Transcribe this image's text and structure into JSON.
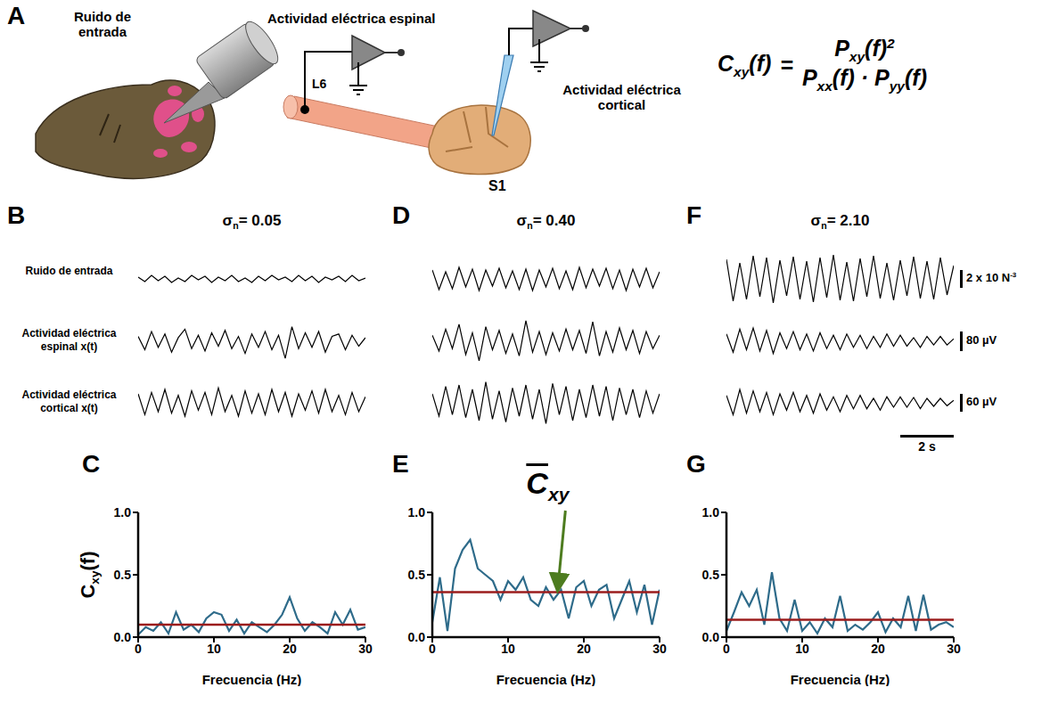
{
  "diagram": {
    "letter": "A",
    "stimulus_label": "Ruido de entrada",
    "spinal_label": "Actividad eléctrica espinal",
    "cortical_label": "Actividad eléctrica cortical",
    "spinal_site": "L6",
    "cortical_site": "S1",
    "formula": {
      "lhs": {
        "main": "C",
        "sub": "xy",
        "rest": "(f)"
      },
      "equals": "=",
      "numerator": {
        "main": "P",
        "sub": "xy",
        "rest": "(f)",
        "sup": "2"
      },
      "denominator": [
        {
          "main": "P",
          "sub": "xx",
          "rest": "(f)"
        },
        {
          "main": "P",
          "sub": "yy",
          "rest": "(f)"
        }
      ],
      "times": "·"
    }
  },
  "chart_data": [
    {
      "panel": "B",
      "type": "line",
      "title": {
        "main": "σ",
        "sub": "n",
        "rest": "= 0.05"
      },
      "tick_labels": false,
      "row_labels": [
        "Ruido de entrada",
        "Actividad eléctrica espinal x(t)",
        "Actividad eléctrica cortical x(t)"
      ],
      "x": [
        0,
        0.25,
        0.5,
        0.75,
        1,
        1.25,
        1.5,
        1.75,
        2,
        2.25,
        2.5,
        2.75,
        3,
        3.25,
        3.5,
        3.75,
        4,
        4.25,
        4.5,
        4.75,
        5,
        5.25,
        5.5,
        5.75,
        6,
        6.25,
        6.5,
        6.75,
        7,
        7.25,
        7.5,
        7.75,
        8,
        8.25,
        8.5
      ],
      "xlim": [
        0,
        8.5
      ],
      "series": [
        {
          "color": "#000000",
          "ylim": [
            -0.003,
            0.003
          ],
          "values": [
            0.0002,
            -0.0003,
            0.0004,
            -0.0002,
            0.0003,
            -0.0004,
            0.0001,
            -0.0003,
            0.0004,
            -0.0001,
            0.0003,
            -0.0004,
            0.0002,
            -0.0002,
            0.0004,
            -0.0003,
            0.0001,
            -0.0004,
            0.0003,
            -0.0002,
            0.0004,
            -0.0001,
            0.0002,
            -0.0003,
            0.0004,
            -0.0002,
            0.0003,
            -0.0004,
            0.0002,
            -0.0001,
            0.0003,
            -0.0003,
            0.0004,
            -0.0002,
            0.0001
          ]
        },
        {
          "color": "#000000",
          "ylim": [
            -110,
            110
          ],
          "values": [
            20,
            -35,
            40,
            -25,
            30,
            -45,
            15,
            50,
            -30,
            25,
            -40,
            35,
            -20,
            45,
            -30,
            20,
            -50,
            30,
            -25,
            40,
            -35,
            25,
            -70,
            60,
            -30,
            35,
            -25,
            40,
            -45,
            20,
            30,
            -35,
            25,
            -20,
            15
          ]
        },
        {
          "color": "#000000",
          "ylim": [
            -90,
            90
          ],
          "values": [
            30,
            -40,
            35,
            -30,
            45,
            -35,
            25,
            -45,
            40,
            -25,
            35,
            -40,
            50,
            -30,
            25,
            -45,
            40,
            -35,
            30,
            -40,
            45,
            -30,
            35,
            -45,
            30,
            -25,
            40,
            -35,
            45,
            -30,
            25,
            -40,
            35,
            -30,
            20
          ]
        }
      ]
    },
    {
      "panel": "D",
      "type": "line",
      "title": {
        "main": "σ",
        "sub": "n",
        "rest": "= 0.40"
      },
      "tick_labels": false,
      "x": [
        0,
        0.25,
        0.5,
        0.75,
        1,
        1.25,
        1.5,
        1.75,
        2,
        2.25,
        2.5,
        2.75,
        3,
        3.25,
        3.5,
        3.75,
        4,
        4.25,
        4.5,
        4.75,
        5,
        5.25,
        5.5,
        5.75,
        6,
        6.25,
        6.5,
        6.75,
        7,
        7.25,
        7.5,
        7.75,
        8,
        8.25,
        8.5
      ],
      "xlim": [
        0,
        8.5
      ],
      "series": [
        {
          "color": "#000000",
          "ylim": [
            -0.003,
            0.003
          ],
          "values": [
            0.001,
            -0.0012,
            0.0008,
            -0.0011,
            0.0013,
            -0.0009,
            0.0011,
            -0.0013,
            0.001,
            -0.0008,
            0.0012,
            -0.001,
            0.0009,
            -0.0012,
            0.0011,
            -0.0013,
            0.001,
            -0.0009,
            0.0012,
            -0.0011,
            0.0009,
            -0.0012,
            0.0013,
            -0.001,
            0.0011,
            -0.0008,
            0.0012,
            -0.0011,
            0.001,
            -0.0013,
            0.0011,
            -0.0009,
            0.0012,
            -0.001,
            0.0008
          ]
        },
        {
          "color": "#000000",
          "ylim": [
            -110,
            110
          ],
          "values": [
            25,
            -40,
            50,
            -30,
            70,
            -55,
            35,
            -80,
            60,
            -35,
            45,
            -50,
            30,
            -60,
            85,
            -45,
            40,
            -55,
            35,
            -40,
            50,
            -35,
            45,
            -50,
            80,
            -60,
            40,
            -45,
            55,
            -35,
            45,
            -50,
            40,
            -30,
            25
          ]
        },
        {
          "color": "#000000",
          "ylim": [
            -90,
            90
          ],
          "values": [
            30,
            -45,
            55,
            -40,
            60,
            -50,
            45,
            -60,
            70,
            -55,
            40,
            -65,
            50,
            -45,
            60,
            -55,
            45,
            -70,
            65,
            -40,
            55,
            -60,
            45,
            -50,
            60,
            -45,
            55,
            -60,
            50,
            -40,
            45,
            -50,
            40,
            -35,
            30
          ]
        }
      ]
    },
    {
      "panel": "F",
      "type": "line",
      "title": {
        "main": "σ",
        "sub": "n",
        "rest": "= 2.10"
      },
      "tick_labels": false,
      "x": [
        0,
        0.25,
        0.5,
        0.75,
        1,
        1.25,
        1.5,
        1.75,
        2,
        2.25,
        2.5,
        2.75,
        3,
        3.25,
        3.5,
        3.75,
        4,
        4.25,
        4.5,
        4.75,
        5,
        5.25,
        5.5,
        5.75,
        6,
        6.25,
        6.5,
        6.75,
        7,
        7.25,
        7.5,
        7.75,
        8,
        8.25,
        8.5
      ],
      "xlim": [
        0,
        8.5
      ],
      "series": [
        {
          "color": "#000000",
          "ylim": [
            -0.003,
            0.003
          ],
          "values": [
            0.0022,
            -0.0025,
            0.0018,
            -0.0023,
            0.0026,
            -0.002,
            0.0024,
            -0.0027,
            0.0021,
            -0.0019,
            0.0025,
            -0.0023,
            0.002,
            -0.0026,
            0.0024,
            -0.0021,
            0.0027,
            -0.0024,
            0.0019,
            -0.0025,
            0.0023,
            -0.002,
            0.0026,
            -0.0022,
            0.0018,
            -0.0024,
            0.0021,
            -0.0019,
            0.0025,
            -0.0022,
            0.002,
            -0.0023,
            0.0024,
            -0.0018,
            0.0015
          ]
        },
        {
          "color": "#000000",
          "ylim": [
            -110,
            110
          ],
          "values": [
            30,
            -45,
            50,
            -35,
            55,
            -40,
            45,
            -50,
            35,
            -30,
            40,
            -35,
            30,
            -40,
            35,
            -30,
            25,
            -35,
            30,
            -25,
            25,
            -30,
            20,
            -25,
            30,
            -20,
            25,
            -20,
            15,
            -25,
            20,
            -15,
            20,
            -15,
            10
          ]
        },
        {
          "color": "#000000",
          "ylim": [
            -90,
            90
          ],
          "values": [
            25,
            -40,
            45,
            -35,
            40,
            -30,
            35,
            -40,
            30,
            -25,
            35,
            -30,
            25,
            -35,
            30,
            -25,
            20,
            -30,
            25,
            -20,
            25,
            -20,
            15,
            -25,
            20,
            -15,
            20,
            -15,
            18,
            -20,
            15,
            -12,
            15,
            -10,
            8
          ]
        }
      ],
      "scale_bars": [
        {
          "value": 0.002,
          "label": {
            "main": "2 x 10",
            "sup": "-3",
            "rest": " N"
          }
        },
        {
          "value": 80,
          "label": "80 µV"
        },
        {
          "value": 60,
          "label": "60 µV"
        }
      ],
      "time_bar": {
        "value": 2,
        "label": "2 s"
      }
    },
    {
      "panel": "C",
      "type": "line",
      "x": [
        0,
        1,
        2,
        3,
        4,
        5,
        6,
        7,
        8,
        9,
        10,
        11,
        12,
        13,
        14,
        15,
        16,
        17,
        18,
        19,
        20,
        21,
        22,
        23,
        24,
        25,
        26,
        27,
        28,
        29,
        30
      ],
      "values": [
        0.02,
        0.08,
        0.05,
        0.12,
        0.03,
        0.2,
        0.06,
        0.1,
        0.04,
        0.15,
        0.2,
        0.18,
        0.05,
        0.14,
        0.03,
        0.12,
        0.08,
        0.04,
        0.1,
        0.18,
        0.32,
        0.15,
        0.05,
        0.12,
        0.08,
        0.03,
        0.2,
        0.1,
        0.22,
        0.06,
        0.08
      ],
      "color": "#2e6b8a",
      "mean": {
        "value": 0.1,
        "color": "#9b1c1c"
      },
      "xlim": [
        0,
        30
      ],
      "xticks": [
        0,
        10,
        20,
        30
      ],
      "ylim": [
        0,
        1
      ],
      "yticks": [
        {
          "value": 0,
          "label": "0.0"
        },
        {
          "value": 0.5,
          "label": "0.5"
        },
        {
          "value": 1,
          "label": "1.0"
        }
      ],
      "x_label": "Frecuencia (Hz)",
      "y_label": {
        "main": "C",
        "sub": "xy",
        "rest": "(f)"
      }
    },
    {
      "panel": "E",
      "type": "line",
      "x": [
        0,
        1,
        2,
        3,
        4,
        5,
        6,
        7,
        8,
        9,
        10,
        11,
        12,
        13,
        14,
        15,
        16,
        17,
        18,
        19,
        20,
        21,
        22,
        23,
        24,
        25,
        26,
        27,
        28,
        29,
        30
      ],
      "values": [
        0.12,
        0.48,
        0.05,
        0.55,
        0.7,
        0.78,
        0.55,
        0.5,
        0.45,
        0.3,
        0.45,
        0.38,
        0.48,
        0.3,
        0.25,
        0.4,
        0.3,
        0.38,
        0.15,
        0.4,
        0.45,
        0.25,
        0.38,
        0.42,
        0.15,
        0.3,
        0.45,
        0.2,
        0.42,
        0.1,
        0.38
      ],
      "color": "#2e6b8a",
      "mean": {
        "value": 0.36,
        "color": "#9b1c1c"
      },
      "annotation": {
        "main": "C",
        "sub": "xy"
      },
      "xlim": [
        0,
        30
      ],
      "xticks": [
        0,
        10,
        20,
        30
      ],
      "ylim": [
        0,
        1
      ],
      "yticks": [
        {
          "value": 0,
          "label": "0.0"
        },
        {
          "value": 0.5,
          "label": "0.5"
        },
        {
          "value": 1,
          "label": "1.0"
        }
      ],
      "x_label": "Frecuencia (Hz)"
    },
    {
      "panel": "G",
      "type": "line",
      "x": [
        0,
        1,
        2,
        3,
        4,
        5,
        6,
        7,
        8,
        9,
        10,
        11,
        12,
        13,
        14,
        15,
        16,
        17,
        18,
        19,
        20,
        21,
        22,
        23,
        24,
        25,
        26,
        27,
        28,
        29,
        30
      ],
      "values": [
        0.05,
        0.2,
        0.36,
        0.25,
        0.38,
        0.1,
        0.52,
        0.15,
        0.05,
        0.3,
        0.05,
        0.12,
        0.03,
        0.15,
        0.08,
        0.33,
        0.05,
        0.1,
        0.06,
        0.12,
        0.2,
        0.04,
        0.15,
        0.08,
        0.33,
        0.05,
        0.34,
        0.06,
        0.1,
        0.12,
        0.08
      ],
      "color": "#2e6b8a",
      "mean": {
        "value": 0.14,
        "color": "#9b1c1c"
      },
      "xlim": [
        0,
        30
      ],
      "xticks": [
        0,
        10,
        20,
        30
      ],
      "ylim": [
        0,
        1
      ],
      "yticks": [
        {
          "value": 0,
          "label": "0.0"
        },
        {
          "value": 0.5,
          "label": "0.5"
        },
        {
          "value": 1,
          "label": "1.0"
        }
      ],
      "x_label": "Frecuencia (Hz)"
    }
  ]
}
